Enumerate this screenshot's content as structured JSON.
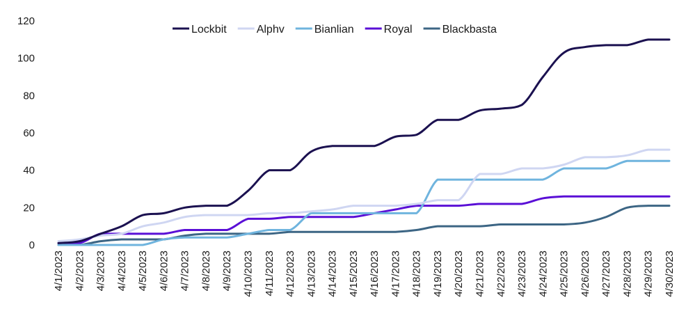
{
  "chart_data": {
    "type": "line",
    "title": "",
    "xlabel": "",
    "ylabel": "",
    "ylim": [
      0,
      120
    ],
    "yticks": [
      0,
      20,
      40,
      60,
      80,
      100,
      120
    ],
    "grid": false,
    "legend_position": "top-center",
    "x": [
      "4/1/2023",
      "4/2/2023",
      "4/3/2023",
      "4/4/2023",
      "4/5/2023",
      "4/6/2023",
      "4/7/2023",
      "4/8/2023",
      "4/9/2023",
      "4/10/2023",
      "4/11/2023",
      "4/12/2023",
      "4/13/2023",
      "4/14/2023",
      "4/15/2023",
      "4/16/2023",
      "4/17/2023",
      "4/18/2023",
      "4/19/2023",
      "4/20/2023",
      "4/21/2023",
      "4/22/2023",
      "4/23/2023",
      "4/24/2023",
      "4/25/2023",
      "4/26/2023",
      "4/27/2023",
      "4/28/2023",
      "4/29/2023",
      "4/30/2023"
    ],
    "series": [
      {
        "name": "Lockbit",
        "color": "#1b1150",
        "values": [
          1,
          2,
          6,
          10,
          16,
          17,
          20,
          21,
          21,
          29,
          40,
          40,
          50,
          53,
          53,
          53,
          58,
          59,
          67,
          67,
          72,
          73,
          75,
          90,
          103,
          106,
          107,
          107,
          110,
          110
        ]
      },
      {
        "name": "Alphv",
        "color": "#cfd6f2",
        "values": [
          2,
          3,
          5,
          6,
          10,
          12,
          15,
          16,
          16,
          16,
          17,
          17,
          18,
          19,
          21,
          21,
          21,
          22,
          24,
          24,
          38,
          38,
          41,
          41,
          43,
          47,
          47,
          48,
          51,
          51
        ]
      },
      {
        "name": "Bianlian",
        "color": "#6fb4de",
        "values": [
          0,
          0,
          0,
          0,
          0,
          3,
          4,
          4,
          4,
          6,
          8,
          8,
          17,
          17,
          17,
          17,
          17,
          17,
          35,
          35,
          35,
          35,
          35,
          35,
          41,
          41,
          41,
          45,
          45,
          45
        ]
      },
      {
        "name": "Royal",
        "color": "#5a0fd6",
        "values": [
          1,
          1,
          6,
          6,
          6,
          6,
          8,
          8,
          8,
          14,
          14,
          15,
          15,
          15,
          15,
          17,
          19,
          21,
          21,
          21,
          22,
          22,
          22,
          25,
          26,
          26,
          26,
          26,
          26,
          26
        ]
      },
      {
        "name": "Blackbasta",
        "color": "#3c6584",
        "values": [
          0,
          0,
          2,
          3,
          3,
          3,
          5,
          6,
          6,
          6,
          6,
          7,
          7,
          7,
          7,
          7,
          7,
          8,
          10,
          10,
          10,
          11,
          11,
          11,
          11,
          12,
          15,
          20,
          21,
          21
        ]
      }
    ]
  }
}
